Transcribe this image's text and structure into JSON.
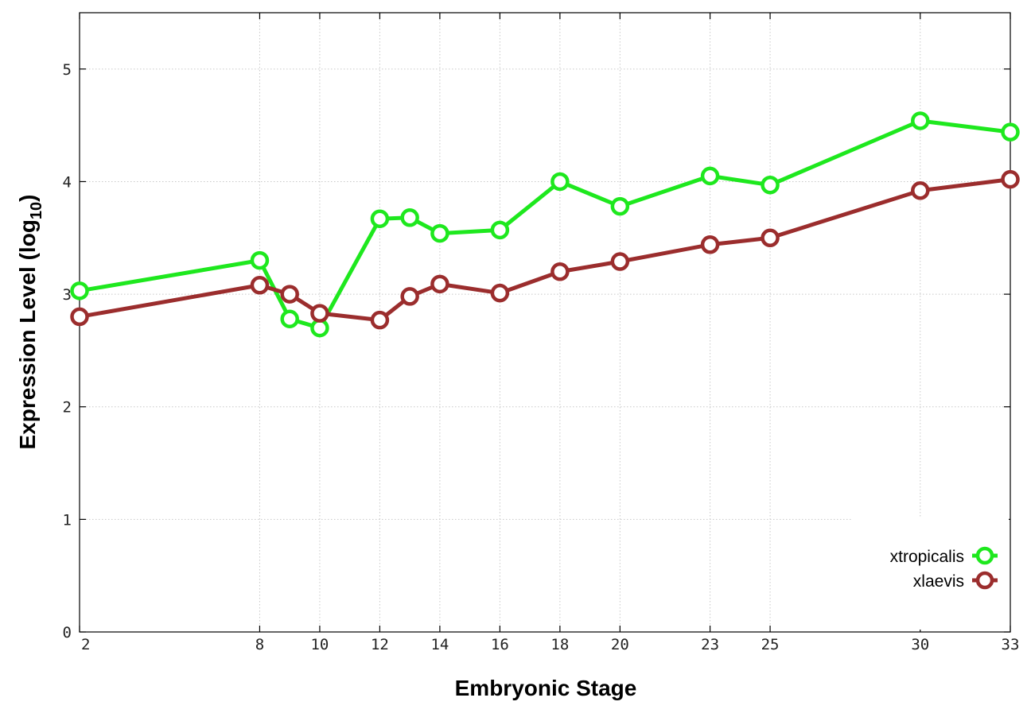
{
  "chart_data": {
    "type": "line",
    "xlabel": "Embryonic Stage",
    "ylabel_main": "Expression Level (log",
    "ylabel_sub": "10",
    "ylabel_close": ")",
    "x": [
      2,
      8,
      9,
      10,
      12,
      13,
      14,
      16,
      18,
      20,
      23,
      25,
      30,
      33
    ],
    "x_ticks": [
      "2",
      "8",
      "10",
      "12",
      "14",
      "16",
      "18",
      "20",
      "23",
      "25",
      "30",
      "33"
    ],
    "xlim": [
      2,
      33
    ],
    "y_ticks": [
      "0",
      "1",
      "2",
      "3",
      "4",
      "5"
    ],
    "ylim": [
      0,
      5.5
    ],
    "grid": true,
    "legend_position": "bottom-right",
    "series": [
      {
        "name": "xtropicalis",
        "color": "#1ee81e",
        "values": [
          3.03,
          3.3,
          2.78,
          2.7,
          3.67,
          3.68,
          3.54,
          3.57,
          4.0,
          3.78,
          4.05,
          3.97,
          4.54,
          4.44
        ]
      },
      {
        "name": "xlaevis",
        "color": "#9b2d2d",
        "values": [
          2.8,
          3.08,
          3.0,
          2.83,
          2.77,
          2.98,
          3.09,
          3.01,
          3.2,
          3.29,
          3.44,
          3.5,
          3.92,
          4.02
        ]
      }
    ]
  }
}
